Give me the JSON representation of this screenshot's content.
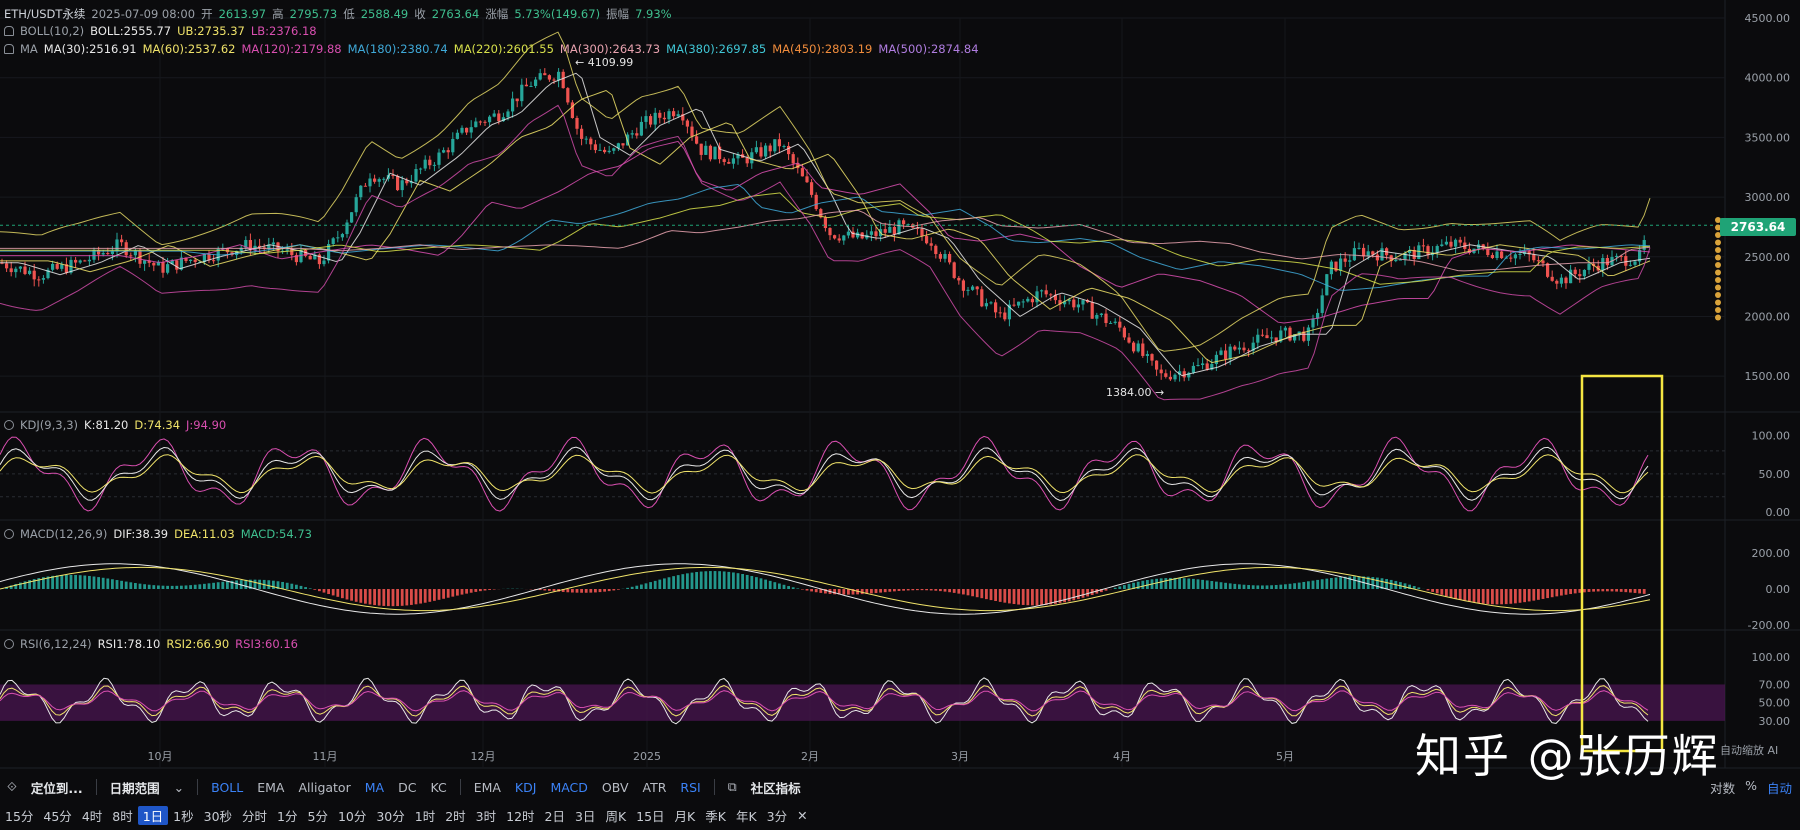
{
  "header": {
    "symbol": "ETH/USDT永续",
    "time": "2025-07-09 08:00",
    "open_label": "开",
    "open": "2613.97",
    "high_label": "高",
    "high": "2795.73",
    "low_label": "低",
    "low": "2588.49",
    "close_label": "收",
    "close": "2763.64",
    "change_label": "涨幅",
    "change": "5.73%(149.67)",
    "amplitude_label": "振幅",
    "amplitude": "7.93%"
  },
  "boll": {
    "name": "BOLL(10,2)",
    "mid": "BOLL:2555.77",
    "ub": "UB:2735.37",
    "lb": "LB:2376.18"
  },
  "ma": {
    "name": "MA",
    "items": [
      {
        "label": "MA(30):2516.91",
        "color": "#e8e8e8"
      },
      {
        "label": "MA(60):2537.62",
        "color": "#f0e36a"
      },
      {
        "label": "MA(120):2179.88",
        "color": "#d94fb0"
      },
      {
        "label": "MA(180):2380.74",
        "color": "#3fa9d8"
      },
      {
        "label": "MA(220):2601.55",
        "color": "#d7e04b"
      },
      {
        "label": "MA(300):2643.73",
        "color": "#e9a3b0"
      },
      {
        "label": "MA(380):2697.85",
        "color": "#40c7d6"
      },
      {
        "label": "MA(450):2803.19",
        "color": "#f08c3c"
      },
      {
        "label": "MA(500):2874.84",
        "color": "#b07de0"
      }
    ]
  },
  "kdj": {
    "name": "KDJ(9,3,3)",
    "k": "K:81.20",
    "d": "D:74.34",
    "j": "J:94.90"
  },
  "macd": {
    "name": "MACD(12,26,9)",
    "dif": "DIF:38.39",
    "dea": "DEA:11.03",
    "macd": "MACD:54.73"
  },
  "rsi": {
    "name": "RSI(6,12,24)",
    "rsi1": "RSI1:78.10",
    "rsi2": "RSI2:66.90",
    "rsi3": "RSI3:60.16"
  },
  "price_axis": [
    "4500.00",
    "4000.00",
    "3500.00",
    "3000.00",
    "2500.00",
    "2000.00",
    "1500.00"
  ],
  "kdj_axis": [
    "100.00",
    "50.00",
    "0.00"
  ],
  "macd_axis": [
    "200.00",
    "0.00",
    "-200.00"
  ],
  "rsi_axis": [
    "100.00",
    "70.00",
    "50.00",
    "30.00"
  ],
  "time_axis": [
    "10月",
    "11月",
    "12月",
    "2025",
    "2月",
    "3月",
    "4月",
    "5月"
  ],
  "current_price": "2763.64",
  "high_mark": "4109.99",
  "low_mark": "1384.00",
  "toolbar": {
    "locate": "定位到...",
    "date_range": "日期范围",
    "indicators_main": [
      "BOLL",
      "EMA",
      "Alligator",
      "MA",
      "DC",
      "KC"
    ],
    "indicators_sub": [
      "EMA",
      "KDJ",
      "MACD",
      "OBV",
      "ATR",
      "RSI"
    ],
    "community": "社区指标",
    "log_label": "对数",
    "percent_label": "%",
    "auto_label": "自动"
  },
  "timeframes": [
    "15分",
    "45分",
    "4时",
    "8时",
    "1日",
    "1秒",
    "30秒",
    "分时",
    "1分",
    "5分",
    "10分",
    "30分",
    "1时",
    "2时",
    "3时",
    "12时",
    "2日",
    "3日",
    "周K",
    "15日",
    "月K",
    "季K",
    "年K",
    "3分"
  ],
  "selected_timeframe": "1日",
  "auto_scale": "自动缩放 AI",
  "watermark": "知乎 @张历辉",
  "colors": {
    "up": "#26a69a",
    "down": "#ef5350",
    "highlight_box": "#f5e642",
    "bg": "#0b0b0d"
  }
}
